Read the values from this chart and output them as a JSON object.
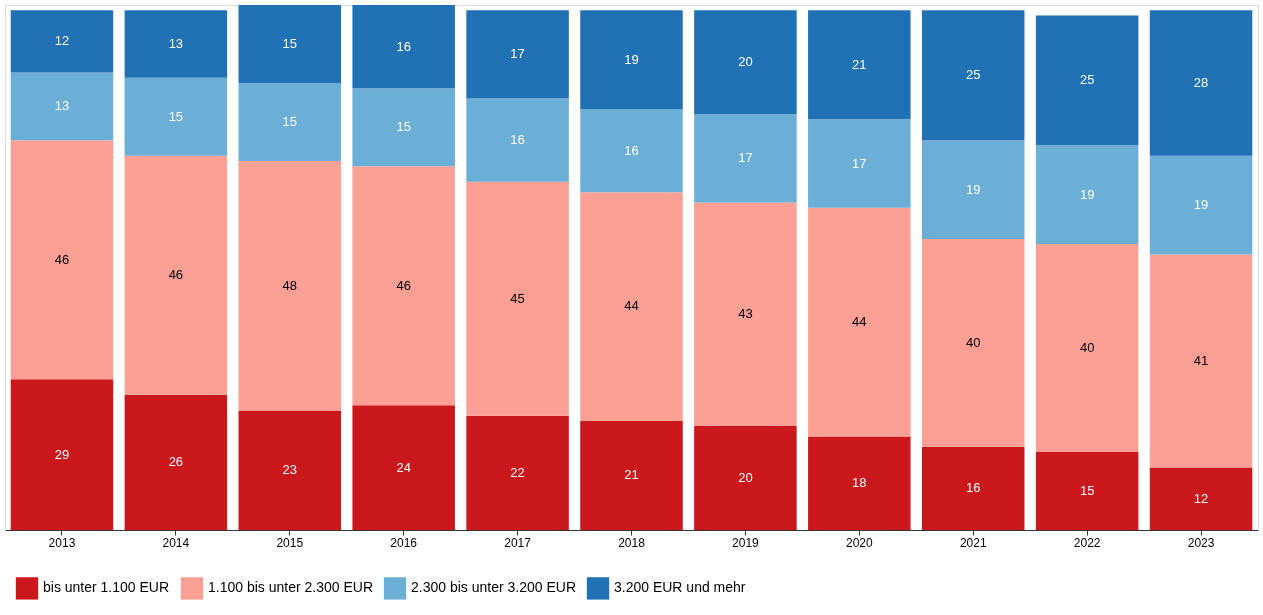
{
  "chart_data": {
    "type": "bar",
    "stacked": true,
    "data_labels": true,
    "legend": "bottom",
    "grid": false,
    "categories": [
      "2013",
      "2014",
      "2015",
      "2016",
      "2017",
      "2018",
      "2019",
      "2020",
      "2021",
      "2022",
      "2023"
    ],
    "series": [
      {
        "name": "bis unter 1.100 EUR",
        "color": "#cb181d",
        "values": [
          29,
          26,
          23,
          24,
          22,
          21,
          20,
          18,
          16,
          15,
          12
        ]
      },
      {
        "name": "1.100 bis unter 2.300 EUR",
        "color": "#fc9f94",
        "values": [
          46,
          46,
          48,
          46,
          45,
          44,
          43,
          44,
          40,
          40,
          41
        ]
      },
      {
        "name": "2.300 bis unter 3.200 EUR",
        "color": "#6baed6",
        "values": [
          13,
          15,
          15,
          15,
          16,
          16,
          17,
          17,
          19,
          19,
          19
        ]
      },
      {
        "name": "3.200 EUR und mehr",
        "color": "#2171b5",
        "values": [
          12,
          13,
          15,
          16,
          17,
          19,
          20,
          21,
          25,
          25,
          28
        ]
      }
    ]
  }
}
